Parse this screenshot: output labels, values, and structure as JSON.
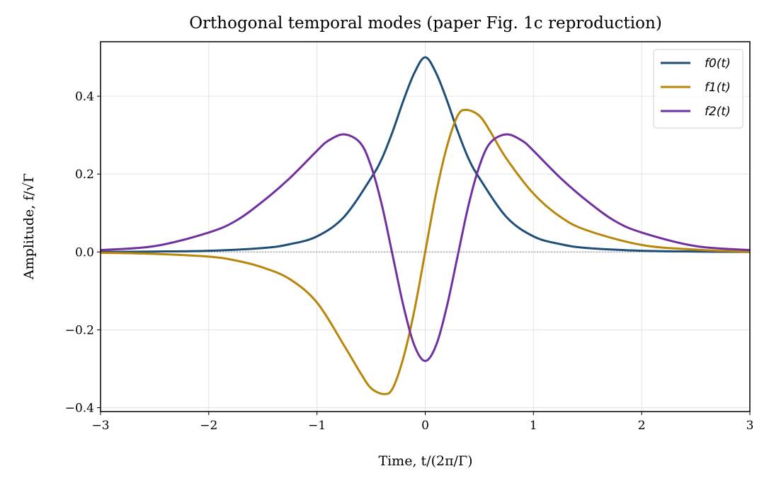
{
  "chart_data": {
    "type": "line",
    "title": "Orthogonal temporal modes (paper Fig. 1c reproduction)",
    "xlabel": "Time, t/(2π/Γ)",
    "ylabel": "Amplitude, f/√Γ",
    "xlim": [
      -3,
      3
    ],
    "ylim": [
      -0.41,
      0.54
    ],
    "xticks": [
      -3,
      -2,
      -1,
      0,
      1,
      2,
      3
    ],
    "xtick_labels": [
      "−3",
      "−2",
      "−1",
      "0",
      "1",
      "2",
      "3"
    ],
    "yticks": [
      -0.4,
      -0.2,
      0.0,
      0.2,
      0.4
    ],
    "ytick_labels": [
      "−0.4",
      "−0.2",
      "0.0",
      "0.2",
      "0.4"
    ],
    "grid": true,
    "zero_line": true,
    "legend_position": "top-right",
    "series": [
      {
        "name": "f0(t)",
        "color": "#1f4e79",
        "points": [
          [
            -3,
            0.0
          ],
          [
            -2.5,
            0.001
          ],
          [
            -2,
            0.003
          ],
          [
            -1.5,
            0.01
          ],
          [
            -1.25,
            0.02
          ],
          [
            -1,
            0.04
          ],
          [
            -0.75,
            0.09
          ],
          [
            -0.5,
            0.19
          ],
          [
            -0.4,
            0.24
          ],
          [
            -0.3,
            0.31
          ],
          [
            -0.2,
            0.39
          ],
          [
            -0.1,
            0.46
          ],
          [
            0,
            0.5
          ],
          [
            0.1,
            0.46
          ],
          [
            0.2,
            0.39
          ],
          [
            0.3,
            0.31
          ],
          [
            0.4,
            0.24
          ],
          [
            0.5,
            0.19
          ],
          [
            0.75,
            0.09
          ],
          [
            1,
            0.04
          ],
          [
            1.25,
            0.02
          ],
          [
            1.5,
            0.01
          ],
          [
            2,
            0.003
          ],
          [
            2.5,
            0.001
          ],
          [
            3,
            0.0
          ]
        ]
      },
      {
        "name": "f1(t)",
        "color": "#b8860b",
        "points": [
          [
            -3,
            -0.002
          ],
          [
            -2.5,
            -0.005
          ],
          [
            -2,
            -0.012
          ],
          [
            -1.75,
            -0.022
          ],
          [
            -1.5,
            -0.04
          ],
          [
            -1.25,
            -0.07
          ],
          [
            -1,
            -0.13
          ],
          [
            -0.75,
            -0.24
          ],
          [
            -0.6,
            -0.31
          ],
          [
            -0.5,
            -0.35
          ],
          [
            -0.38,
            -0.365
          ],
          [
            -0.3,
            -0.35
          ],
          [
            -0.2,
            -0.27
          ],
          [
            -0.1,
            -0.15
          ],
          [
            0,
            0.0
          ],
          [
            0.1,
            0.15
          ],
          [
            0.2,
            0.27
          ],
          [
            0.3,
            0.35
          ],
          [
            0.38,
            0.365
          ],
          [
            0.5,
            0.35
          ],
          [
            0.6,
            0.31
          ],
          [
            0.75,
            0.24
          ],
          [
            1,
            0.15
          ],
          [
            1.25,
            0.09
          ],
          [
            1.5,
            0.055
          ],
          [
            2,
            0.018
          ],
          [
            2.5,
            0.006
          ],
          [
            3,
            0.0
          ]
        ]
      },
      {
        "name": "f2(t)",
        "color": "#7030a0",
        "points": [
          [
            -3,
            0.005
          ],
          [
            -2.5,
            0.015
          ],
          [
            -2,
            0.05
          ],
          [
            -1.75,
            0.08
          ],
          [
            -1.5,
            0.13
          ],
          [
            -1.25,
            0.19
          ],
          [
            -1,
            0.26
          ],
          [
            -0.9,
            0.285
          ],
          [
            -0.75,
            0.302
          ],
          [
            -0.6,
            0.28
          ],
          [
            -0.5,
            0.22
          ],
          [
            -0.4,
            0.12
          ],
          [
            -0.3,
            -0.01
          ],
          [
            -0.2,
            -0.14
          ],
          [
            -0.1,
            -0.24
          ],
          [
            0,
            -0.28
          ],
          [
            0.1,
            -0.24
          ],
          [
            0.2,
            -0.14
          ],
          [
            0.3,
            -0.01
          ],
          [
            0.4,
            0.12
          ],
          [
            0.5,
            0.22
          ],
          [
            0.6,
            0.28
          ],
          [
            0.75,
            0.302
          ],
          [
            0.9,
            0.285
          ],
          [
            1,
            0.26
          ],
          [
            1.25,
            0.19
          ],
          [
            1.5,
            0.13
          ],
          [
            1.75,
            0.08
          ],
          [
            2,
            0.05
          ],
          [
            2.5,
            0.015
          ],
          [
            3,
            0.005
          ]
        ]
      }
    ]
  }
}
